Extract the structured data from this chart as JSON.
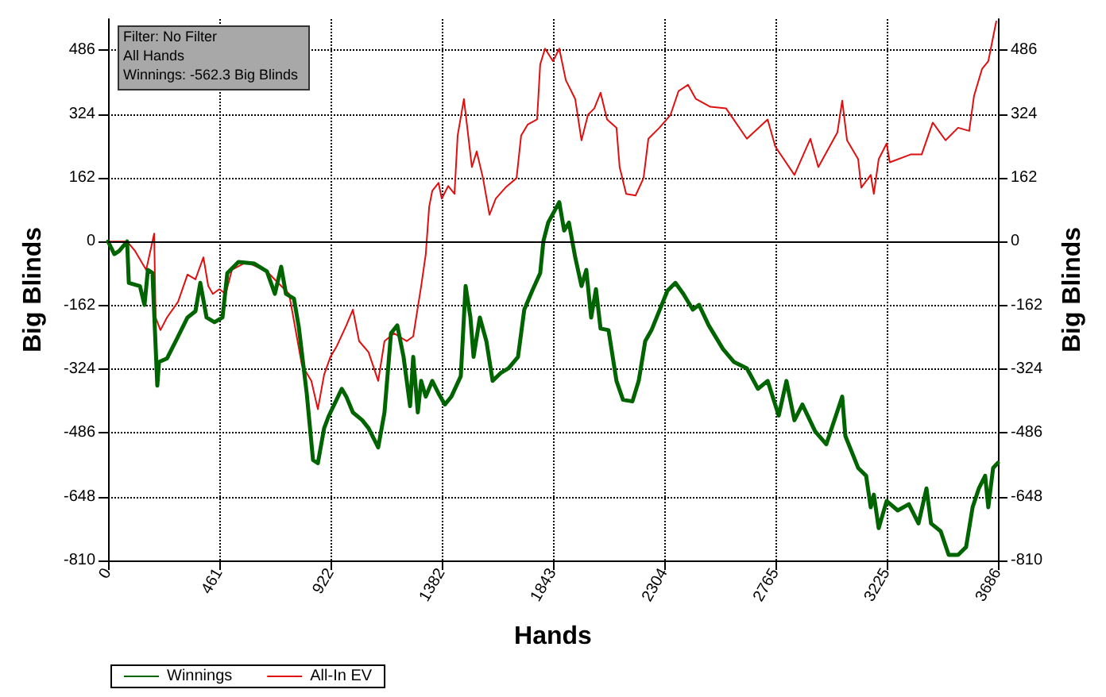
{
  "chart_data": {
    "type": "line",
    "xlabel": "Hands",
    "ylabel": "Big Blinds",
    "y2label": "Big Blinds",
    "annotations": [
      "Filter: No Filter",
      "All Hands",
      "Winnings: -562.3 Big Blinds"
    ],
    "xlim": [
      0,
      3686
    ],
    "xticks": [
      0,
      461,
      922,
      1382,
      1843,
      2304,
      2765,
      3225,
      3686
    ],
    "ylim": [
      -810,
      565
    ],
    "yticks": [
      -810,
      -648,
      -486,
      -324,
      -162,
      0,
      162,
      324,
      486
    ],
    "y2lim": [
      -810,
      565
    ],
    "y2ticks": [
      -810,
      -648,
      -486,
      -324,
      -162,
      0,
      162,
      324,
      486
    ],
    "grid": true,
    "legend": "bottom left",
    "marker": "none",
    "line_style": "solid",
    "ref_lines": [
      {
        "axis": "y",
        "value": 0,
        "color": "#000000"
      }
    ],
    "series": [
      {
        "name": "Winnings",
        "color": "#006400",
        "x": [
          0,
          26,
          46,
          79,
          86,
          132,
          151,
          165,
          184,
          204,
          211,
          244,
          290,
          329,
          362,
          382,
          408,
          441,
          474,
          494,
          540,
          606,
          658,
          691,
          717,
          737,
          770,
          790,
          823,
          849,
          869,
          895,
          915,
          968,
          987,
          1014,
          1053,
          1079,
          1119,
          1145,
          1172,
          1198,
          1224,
          1251,
          1264,
          1283,
          1297,
          1316,
          1343,
          1369,
          1395,
          1422,
          1461,
          1481,
          1501,
          1514,
          1540,
          1567,
          1593,
          1626,
          1659,
          1698,
          1724,
          1757,
          1790,
          1803,
          1823,
          1869,
          1889,
          1909,
          1935,
          1961,
          1981,
          2001,
          2021,
          2040,
          2073,
          2106,
          2133,
          2172,
          2198,
          2225,
          2251,
          2317,
          2350,
          2383,
          2422,
          2448,
          2488,
          2547,
          2593,
          2646,
          2692,
          2732,
          2778,
          2810,
          2843,
          2876,
          2929,
          2975,
          3041,
          3054,
          3107,
          3140,
          3159,
          3172,
          3192,
          3225,
          3271,
          3317,
          3357,
          3390,
          3409,
          3449,
          3482,
          3521,
          3554,
          3581,
          3607,
          3633,
          3646,
          3666,
          3686
        ],
        "values": [
          0,
          -32,
          -24,
          0,
          -105,
          -113,
          -161,
          -72,
          -80,
          -366,
          -306,
          -297,
          -241,
          -193,
          -177,
          -105,
          -193,
          -205,
          -193,
          -80,
          -52,
          -56,
          -76,
          -133,
          -64,
          -133,
          -145,
          -217,
          -386,
          -555,
          -563,
          -474,
          -442,
          -374,
          -394,
          -434,
          -454,
          -474,
          -523,
          -434,
          -233,
          -213,
          -293,
          -418,
          -293,
          -434,
          -354,
          -394,
          -354,
          -386,
          -414,
          -394,
          -342,
          -113,
          -193,
          -293,
          -193,
          -253,
          -354,
          -334,
          -322,
          -293,
          -173,
          -125,
          -80,
          0,
          48,
          100,
          28,
          48,
          -40,
          -113,
          -72,
          -193,
          -121,
          -221,
          -225,
          -354,
          -402,
          -406,
          -354,
          -253,
          -225,
          -125,
          -105,
          -133,
          -173,
          -161,
          -213,
          -273,
          -306,
          -322,
          -374,
          -354,
          -442,
          -354,
          -454,
          -414,
          -482,
          -515,
          -394,
          -494,
          -575,
          -595,
          -675,
          -643,
          -728,
          -659,
          -683,
          -667,
          -716,
          -627,
          -716,
          -736,
          -796,
          -796,
          -776,
          -675,
          -627,
          -595,
          -675,
          -575,
          -562
        ]
      },
      {
        "name": "All-In EV",
        "color": "#e01010",
        "x": [
          0,
          79,
          112,
          158,
          191,
          197,
          217,
          244,
          290,
          329,
          362,
          395,
          415,
          434,
          461,
          487,
          513,
          573,
          658,
          704,
          750,
          803,
          842,
          869,
          895,
          921,
          948,
          987,
          1014,
          1040,
          1079,
          1119,
          1145,
          1185,
          1237,
          1264,
          1297,
          1316,
          1330,
          1343,
          1369,
          1382,
          1409,
          1435,
          1448,
          1474,
          1488,
          1507,
          1527,
          1553,
          1580,
          1606,
          1646,
          1692,
          1711,
          1738,
          1777,
          1790,
          1810,
          1843,
          1869,
          1896,
          1935,
          1961,
          1988,
          2014,
          2040,
          2067,
          2106,
          2119,
          2146,
          2185,
          2218,
          2238,
          2284,
          2330,
          2363,
          2402,
          2435,
          2495,
          2560,
          2646,
          2732,
          2764,
          2843,
          2909,
          2942,
          3021,
          3041,
          3061,
          3107,
          3120,
          3159,
          3172,
          3192,
          3225,
          3238,
          3324,
          3370,
          3416,
          3469,
          3521,
          3567,
          3587,
          3620,
          3646,
          3666,
          3679
        ],
        "values": [
          0,
          0,
          -24,
          -72,
          20,
          -193,
          -225,
          -193,
          -153,
          -84,
          -96,
          -40,
          -113,
          -133,
          -121,
          -133,
          -72,
          -52,
          -76,
          -105,
          -133,
          -314,
          -354,
          -426,
          -338,
          -293,
          -265,
          -213,
          -173,
          -253,
          -281,
          -354,
          -253,
          -233,
          -253,
          -241,
          -113,
          -32,
          88,
          129,
          149,
          109,
          141,
          121,
          269,
          362,
          289,
          189,
          229,
          161,
          68,
          109,
          137,
          161,
          269,
          297,
          310,
          450,
          490,
          458,
          490,
          410,
          362,
          257,
          322,
          338,
          378,
          310,
          289,
          189,
          121,
          117,
          161,
          261,
          289,
          322,
          382,
          398,
          362,
          342,
          338,
          261,
          310,
          241,
          169,
          261,
          189,
          277,
          358,
          257,
          209,
          137,
          169,
          121,
          209,
          249,
          201,
          221,
          221,
          302,
          257,
          289,
          281,
          370,
          438,
          458,
          519,
          559
        ]
      }
    ]
  }
}
